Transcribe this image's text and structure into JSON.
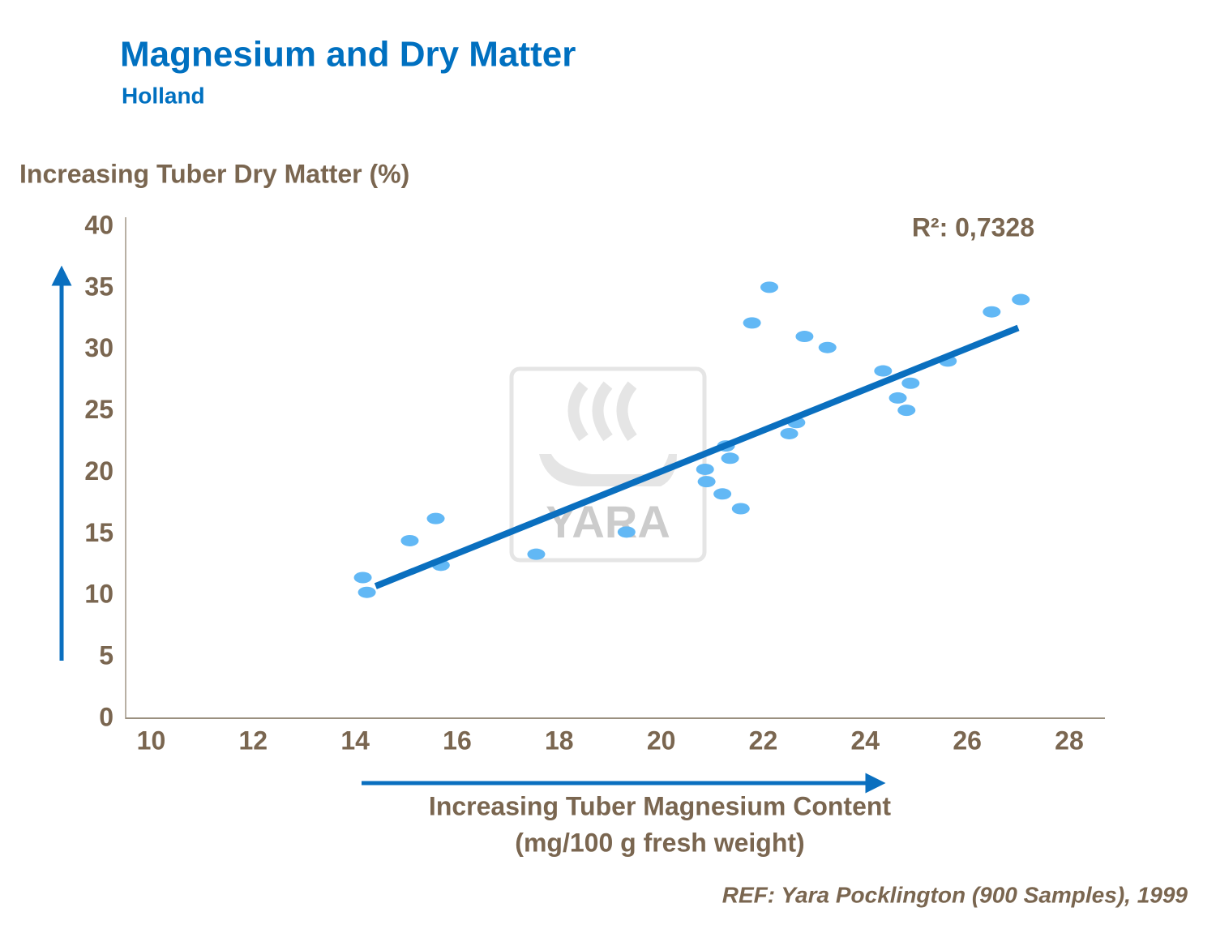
{
  "chart_data": {
    "type": "scatter",
    "title": "Magnesium and Dry Matter",
    "subtitle": "Holland",
    "y_label": "Increasing Tuber Dry Matter  (%)",
    "x_label": [
      "Increasing Tuber Magnesium Content",
      "(mg/100 g fresh weight)"
    ],
    "annotation": "R²: 0,7328",
    "reference": "REF: Yara Pocklington (900 Samples), 1999",
    "watermark": "YARA",
    "xlim": [
      9.5,
      28.7
    ],
    "ylim": [
      0,
      40
    ],
    "xticks": [
      10,
      12,
      14,
      16,
      18,
      20,
      22,
      24,
      26,
      28
    ],
    "yticks": [
      0,
      5,
      10,
      15,
      20,
      25,
      30,
      35,
      40
    ],
    "series": [
      {
        "color": "#62b8f5",
        "x": [
          14.15,
          14.23,
          15.07,
          15.58,
          15.68,
          17.55,
          19.32,
          20.86,
          20.89,
          21.2,
          21.27,
          21.35,
          21.56,
          21.78,
          22.12,
          22.51,
          22.65,
          22.81,
          23.26,
          24.35,
          24.64,
          24.81,
          24.89,
          25.62,
          26.48,
          27.05
        ],
        "values": [
          11.5,
          10.3,
          14.5,
          16.3,
          12.5,
          13.4,
          15.2,
          20.3,
          19.3,
          18.3,
          22.2,
          21.2,
          17.1,
          32.2,
          35.1,
          23.2,
          24.1,
          31.1,
          30.2,
          28.3,
          26.1,
          25.1,
          27.3,
          29.1,
          33.1,
          34.1
        ]
      }
    ],
    "trendline": {
      "color": "#0a6fbf",
      "x": [
        14.4,
        27.0
      ],
      "values": [
        10.8,
        31.8
      ]
    }
  }
}
